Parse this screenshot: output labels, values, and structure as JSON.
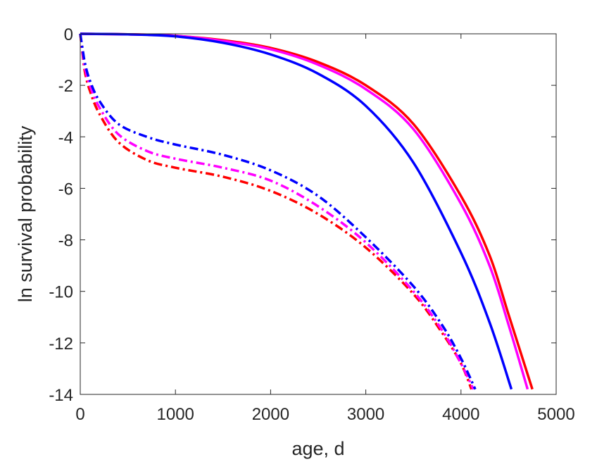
{
  "chart_data": {
    "type": "line",
    "title": "",
    "xlabel": "age, d",
    "ylabel": "ln survival probability",
    "xlim": [
      0,
      5000
    ],
    "ylim": [
      -14,
      0
    ],
    "xticks": [
      0,
      1000,
      2000,
      3000,
      4000,
      5000
    ],
    "yticks": [
      0,
      -2,
      -4,
      -6,
      -8,
      -10,
      -12,
      -14
    ],
    "xtick_labels": [
      "0",
      "1000",
      "2000",
      "3000",
      "4000",
      "5000"
    ],
    "ytick_labels": [
      "0",
      "-2",
      "-4",
      "-6",
      "-8",
      "-10",
      "-12",
      "-14"
    ],
    "grid": false,
    "legend": "none",
    "series": [
      {
        "color": "#ff0000",
        "style": "solid",
        "points": [
          [
            0,
            0
          ],
          [
            500,
            -0.02
          ],
          [
            1000,
            -0.08
          ],
          [
            1500,
            -0.25
          ],
          [
            2000,
            -0.55
          ],
          [
            2500,
            -1.1
          ],
          [
            3000,
            -2.0
          ],
          [
            3500,
            -3.5
          ],
          [
            4000,
            -6.3
          ],
          [
            4300,
            -8.6
          ],
          [
            4500,
            -10.9
          ],
          [
            4750,
            -13.8
          ]
        ]
      },
      {
        "color": "#ff00ff",
        "style": "solid",
        "points": [
          [
            0,
            0
          ],
          [
            500,
            -0.02
          ],
          [
            1000,
            -0.08
          ],
          [
            1500,
            -0.28
          ],
          [
            2000,
            -0.6
          ],
          [
            2500,
            -1.2
          ],
          [
            3000,
            -2.15
          ],
          [
            3500,
            -3.7
          ],
          [
            4000,
            -6.6
          ],
          [
            4300,
            -9.0
          ],
          [
            4500,
            -11.3
          ],
          [
            4700,
            -13.8
          ]
        ]
      },
      {
        "color": "#0000ff",
        "style": "solid",
        "points": [
          [
            0,
            0
          ],
          [
            500,
            -0.02
          ],
          [
            1000,
            -0.1
          ],
          [
            1500,
            -0.35
          ],
          [
            2000,
            -0.8
          ],
          [
            2500,
            -1.55
          ],
          [
            3000,
            -2.8
          ],
          [
            3500,
            -5.0
          ],
          [
            4000,
            -8.5
          ],
          [
            4300,
            -11.2
          ],
          [
            4530,
            -13.8
          ]
        ]
      },
      {
        "color": "#ff0000",
        "style": "dashdot",
        "points": [
          [
            0,
            0
          ],
          [
            25,
            -0.8
          ],
          [
            50,
            -1.5
          ],
          [
            100,
            -2.2
          ],
          [
            200,
            -3.1
          ],
          [
            400,
            -4.2
          ],
          [
            700,
            -4.9
          ],
          [
            1000,
            -5.2
          ],
          [
            1500,
            -5.55
          ],
          [
            2000,
            -6.1
          ],
          [
            2500,
            -7.0
          ],
          [
            3000,
            -8.3
          ],
          [
            3500,
            -10.1
          ],
          [
            3800,
            -11.6
          ],
          [
            4000,
            -12.8
          ],
          [
            4110,
            -13.8
          ]
        ]
      },
      {
        "color": "#ff00ff",
        "style": "dashdot",
        "points": [
          [
            0,
            0
          ],
          [
            25,
            -0.7
          ],
          [
            50,
            -1.35
          ],
          [
            100,
            -2.0
          ],
          [
            200,
            -2.85
          ],
          [
            400,
            -3.9
          ],
          [
            700,
            -4.55
          ],
          [
            1000,
            -4.85
          ],
          [
            1500,
            -5.2
          ],
          [
            2000,
            -5.7
          ],
          [
            2500,
            -6.7
          ],
          [
            3000,
            -8.1
          ],
          [
            3500,
            -10.0
          ],
          [
            3800,
            -11.5
          ],
          [
            4000,
            -12.8
          ],
          [
            4130,
            -13.8
          ]
        ]
      },
      {
        "color": "#0000ff",
        "style": "dashdot",
        "points": [
          [
            0,
            0
          ],
          [
            25,
            -0.6
          ],
          [
            50,
            -1.15
          ],
          [
            100,
            -1.8
          ],
          [
            200,
            -2.6
          ],
          [
            400,
            -3.5
          ],
          [
            700,
            -4.0
          ],
          [
            1000,
            -4.3
          ],
          [
            1500,
            -4.7
          ],
          [
            2000,
            -5.3
          ],
          [
            2500,
            -6.3
          ],
          [
            3000,
            -7.9
          ],
          [
            3500,
            -9.8
          ],
          [
            3800,
            -11.3
          ],
          [
            4000,
            -12.6
          ],
          [
            4150,
            -13.8
          ]
        ]
      }
    ]
  }
}
